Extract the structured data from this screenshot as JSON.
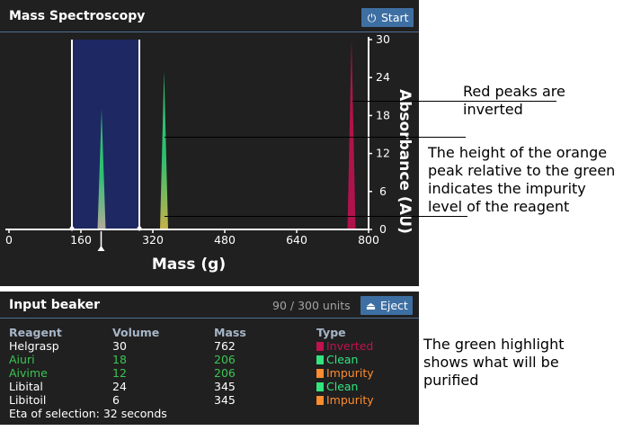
{
  "spectroscopy": {
    "title": "Mass Spectroscopy",
    "start_label": "Start",
    "start_icon": "power-icon"
  },
  "chart_data": {
    "type": "area",
    "xlabel": "Mass (g)",
    "ylabel": "Absorbance (AU)",
    "xlim": [
      0,
      800
    ],
    "ylim": [
      0,
      30
    ],
    "xticks": [
      "0",
      "160",
      "320",
      "480",
      "640",
      "800"
    ],
    "yticks": [
      "30",
      "24",
      "18",
      "12",
      "6",
      "0"
    ],
    "selection": {
      "from": 140,
      "to": 290,
      "marker": 205
    },
    "peaks": [
      {
        "mass": 206,
        "absorbance": 19,
        "color": "#2fbf71",
        "base_color": "#b5a99c",
        "label": "Aiuri / Aivime"
      },
      {
        "mass": 345,
        "absorbance": 25,
        "color": "#2fbf71",
        "base_color": "#c7b24a",
        "label": "Libital / Libitoil"
      },
      {
        "mass": 762,
        "absorbance": 30,
        "color": "#b0134c",
        "label": "Helgrasp"
      }
    ],
    "impurity_marker_absorbance": 2
  },
  "beaker": {
    "title": "Input beaker",
    "units": "90 / 300 units",
    "eject_label": "Eject",
    "eject_icon": "eject-icon",
    "headers": {
      "name": "Reagent",
      "volume": "Volume",
      "mass": "Mass",
      "type": "Type"
    },
    "rows": [
      {
        "name": "Helgrasp",
        "volume": "30",
        "mass": "762",
        "type": "Inverted",
        "color": "#ffffff",
        "type_color": "#c0124f"
      },
      {
        "name": "Aiuri",
        "volume": "18",
        "mass": "206",
        "type": "Clean",
        "color": "#3cc453",
        "type_color": "#33e47f"
      },
      {
        "name": "Aivime",
        "volume": "12",
        "mass": "206",
        "type": "Impurity",
        "color": "#3cc453",
        "type_color": "#ff8c2e"
      },
      {
        "name": "Libital",
        "volume": "24",
        "mass": "345",
        "type": "Clean",
        "color": "#ffffff",
        "type_color": "#33e47f"
      },
      {
        "name": "Libitoil",
        "volume": "6",
        "mass": "345",
        "type": "Impurity",
        "color": "#ffffff",
        "type_color": "#ff8c2e"
      }
    ],
    "eta": "Eta of selection: 32 seconds"
  },
  "annotations": {
    "red": "Red peaks are inverted",
    "orange": "The height of the orange peak relative to the green indicates the impurity level of the reagent",
    "green": "The green highlight shows what will be purified"
  }
}
